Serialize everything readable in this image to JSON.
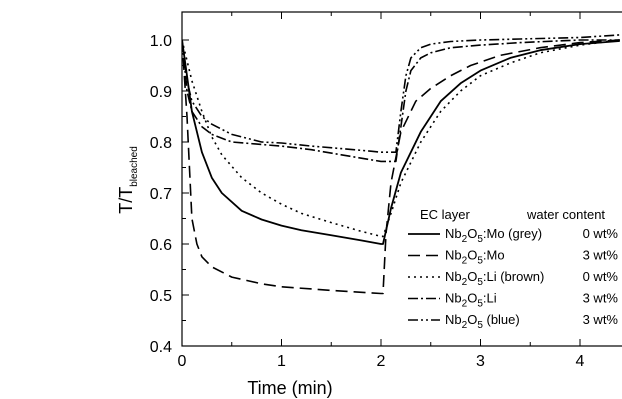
{
  "chart_data": {
    "type": "line",
    "xlabel": "Time (min)",
    "ylabel": {
      "main": "T/T",
      "sub": "bleached"
    },
    "xlim": [
      0,
      4.4
    ],
    "ylim": [
      0.4,
      1.05
    ],
    "xticks": [
      "0",
      "1",
      "2",
      "3",
      "4"
    ],
    "yticks": [
      "0.4",
      "0.5",
      "0.6",
      "0.7",
      "0.8",
      "0.9",
      "1.0"
    ],
    "legend": {
      "placement": "lower-right",
      "header_left": "EC layer",
      "header_right": "water content"
    },
    "series": [
      {
        "label_parts": [
          {
            "t": "Nb"
          },
          {
            "t": "2",
            "sub": true
          },
          {
            "t": "O"
          },
          {
            "t": "5",
            "sub": true
          },
          {
            "t": ":Mo (grey)"
          }
        ],
        "water": "0 wt%",
        "dash": "solid",
        "x": [
          0,
          0.05,
          0.1,
          0.2,
          0.3,
          0.4,
          0.6,
          0.8,
          1.0,
          1.2,
          1.5,
          1.8,
          2.0,
          2.02,
          2.1,
          2.2,
          2.4,
          2.6,
          2.8,
          3.0,
          3.3,
          3.6,
          4.0,
          4.4
        ],
        "y": [
          1.0,
          0.93,
          0.86,
          0.78,
          0.73,
          0.7,
          0.665,
          0.648,
          0.636,
          0.627,
          0.617,
          0.607,
          0.6,
          0.6,
          0.67,
          0.74,
          0.82,
          0.88,
          0.915,
          0.94,
          0.965,
          0.98,
          0.992,
          0.998
        ]
      },
      {
        "label_parts": [
          {
            "t": "Nb"
          },
          {
            "t": "2",
            "sub": true
          },
          {
            "t": "O"
          },
          {
            "t": "5",
            "sub": true
          },
          {
            "t": ":Mo"
          }
        ],
        "water": "3 wt%",
        "dash": "long",
        "x": [
          0,
          0.05,
          0.1,
          0.15,
          0.2,
          0.3,
          0.5,
          0.8,
          1.0,
          1.5,
          2.0,
          2.02,
          2.05,
          2.1,
          2.2,
          2.35,
          2.5,
          2.7,
          2.9,
          3.2,
          3.6,
          4.0,
          4.4
        ],
        "y": [
          1.0,
          0.85,
          0.65,
          0.6,
          0.575,
          0.555,
          0.535,
          0.522,
          0.516,
          0.509,
          0.503,
          0.503,
          0.62,
          0.72,
          0.82,
          0.88,
          0.905,
          0.93,
          0.95,
          0.97,
          0.985,
          0.995,
          1.0
        ]
      },
      {
        "label_parts": [
          {
            "t": "Nb"
          },
          {
            "t": "2",
            "sub": true
          },
          {
            "t": "O"
          },
          {
            "t": "5",
            "sub": true
          },
          {
            "t": ":Li (brown)"
          }
        ],
        "water": "0 wt%",
        "dash": "dot",
        "x": [
          0,
          0.1,
          0.2,
          0.3,
          0.4,
          0.6,
          0.8,
          1.0,
          1.2,
          1.5,
          1.8,
          2.0,
          2.02,
          2.1,
          2.2,
          2.4,
          2.6,
          2.8,
          3.0,
          3.3,
          3.6,
          4.0,
          4.4
        ],
        "y": [
          1.0,
          0.92,
          0.86,
          0.81,
          0.775,
          0.73,
          0.7,
          0.678,
          0.66,
          0.642,
          0.625,
          0.615,
          0.615,
          0.66,
          0.72,
          0.8,
          0.86,
          0.9,
          0.93,
          0.955,
          0.975,
          0.99,
          1.0
        ]
      },
      {
        "label_parts": [
          {
            "t": "Nb"
          },
          {
            "t": "2",
            "sub": true
          },
          {
            "t": "O"
          },
          {
            "t": "5",
            "sub": true
          },
          {
            "t": ":Li"
          }
        ],
        "water": "3 wt%",
        "dash": "dashdot",
        "x": [
          0,
          0.05,
          0.1,
          0.2,
          0.3,
          0.5,
          0.8,
          1.0,
          1.3,
          1.6,
          1.9,
          2.0,
          2.15,
          2.2,
          2.25,
          2.3,
          2.4,
          2.5,
          2.7,
          3.0,
          3.4,
          4.0,
          4.4
        ],
        "y": [
          1.0,
          0.9,
          0.86,
          0.83,
          0.815,
          0.8,
          0.795,
          0.792,
          0.785,
          0.775,
          0.765,
          0.762,
          0.762,
          0.83,
          0.9,
          0.94,
          0.965,
          0.975,
          0.985,
          0.99,
          0.995,
          1.0,
          1.0
        ]
      },
      {
        "label_parts": [
          {
            "t": "Nb"
          },
          {
            "t": "2",
            "sub": true
          },
          {
            "t": "O"
          },
          {
            "t": "5",
            "sub": true
          },
          {
            "t": " (blue)"
          }
        ],
        "water": "3 wt%",
        "dash": "dashdotdot",
        "x": [
          0,
          0.05,
          0.1,
          0.2,
          0.3,
          0.5,
          0.8,
          1.0,
          1.3,
          1.6,
          1.9,
          2.0,
          2.15,
          2.2,
          2.25,
          2.3,
          2.4,
          2.5,
          2.7,
          3.0,
          3.4,
          4.0,
          4.4
        ],
        "y": [
          1.0,
          0.92,
          0.88,
          0.85,
          0.835,
          0.815,
          0.8,
          0.798,
          0.792,
          0.787,
          0.782,
          0.78,
          0.78,
          0.86,
          0.93,
          0.965,
          0.985,
          0.992,
          0.997,
          1.0,
          1.002,
          1.005,
          1.01
        ]
      }
    ]
  }
}
